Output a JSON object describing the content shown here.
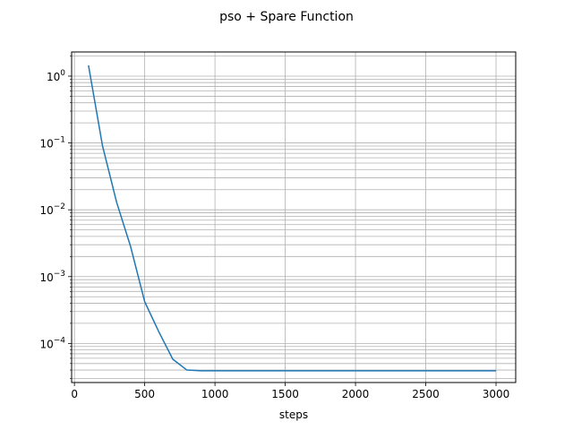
{
  "chart_data": {
    "type": "line",
    "title": "pso + Spare Function",
    "xlabel": "steps",
    "ylabel": "",
    "yscale": "log",
    "grid": true,
    "grid_minor": true,
    "xlim": [
      -20,
      3140
    ],
    "ylim": [
      2.6e-05,
      2.3
    ],
    "x_ticks": [
      0,
      500,
      1000,
      1500,
      2000,
      2500,
      3000
    ],
    "x_tick_labels": [
      "0",
      "500",
      "1000",
      "1500",
      "2000",
      "2500",
      "3000"
    ],
    "y_ticks": [
      0.0001,
      0.001,
      0.01,
      0.1,
      1
    ],
    "y_tick_labels": [
      {
        "base": "10",
        "exp": "−4"
      },
      {
        "base": "10",
        "exp": "−3"
      },
      {
        "base": "10",
        "exp": "−2"
      },
      {
        "base": "10",
        "exp": "−1"
      },
      {
        "base": "10",
        "exp": "0"
      }
    ],
    "series": [
      {
        "color": "#1f77b4",
        "x": [
          100,
          200,
          300,
          400,
          500,
          600,
          700,
          800,
          900,
          1000,
          1100,
          1200,
          1300,
          1400,
          1500,
          1600,
          1700,
          1800,
          1900,
          2000,
          2100,
          2200,
          2300,
          2400,
          2500,
          2600,
          2700,
          2800,
          2900,
          3000
        ],
        "y": [
          1.45,
          0.09,
          0.013,
          0.0028,
          0.00042,
          0.00015,
          5.8e-05,
          4e-05,
          3.9e-05,
          3.9e-05,
          3.9e-05,
          3.9e-05,
          3.9e-05,
          3.9e-05,
          3.9e-05,
          3.9e-05,
          3.9e-05,
          3.9e-05,
          3.9e-05,
          3.9e-05,
          3.9e-05,
          3.9e-05,
          3.9e-05,
          3.9e-05,
          3.9e-05,
          3.9e-05,
          3.9e-05,
          3.9e-05,
          3.9e-05,
          3.9e-05
        ]
      }
    ]
  }
}
